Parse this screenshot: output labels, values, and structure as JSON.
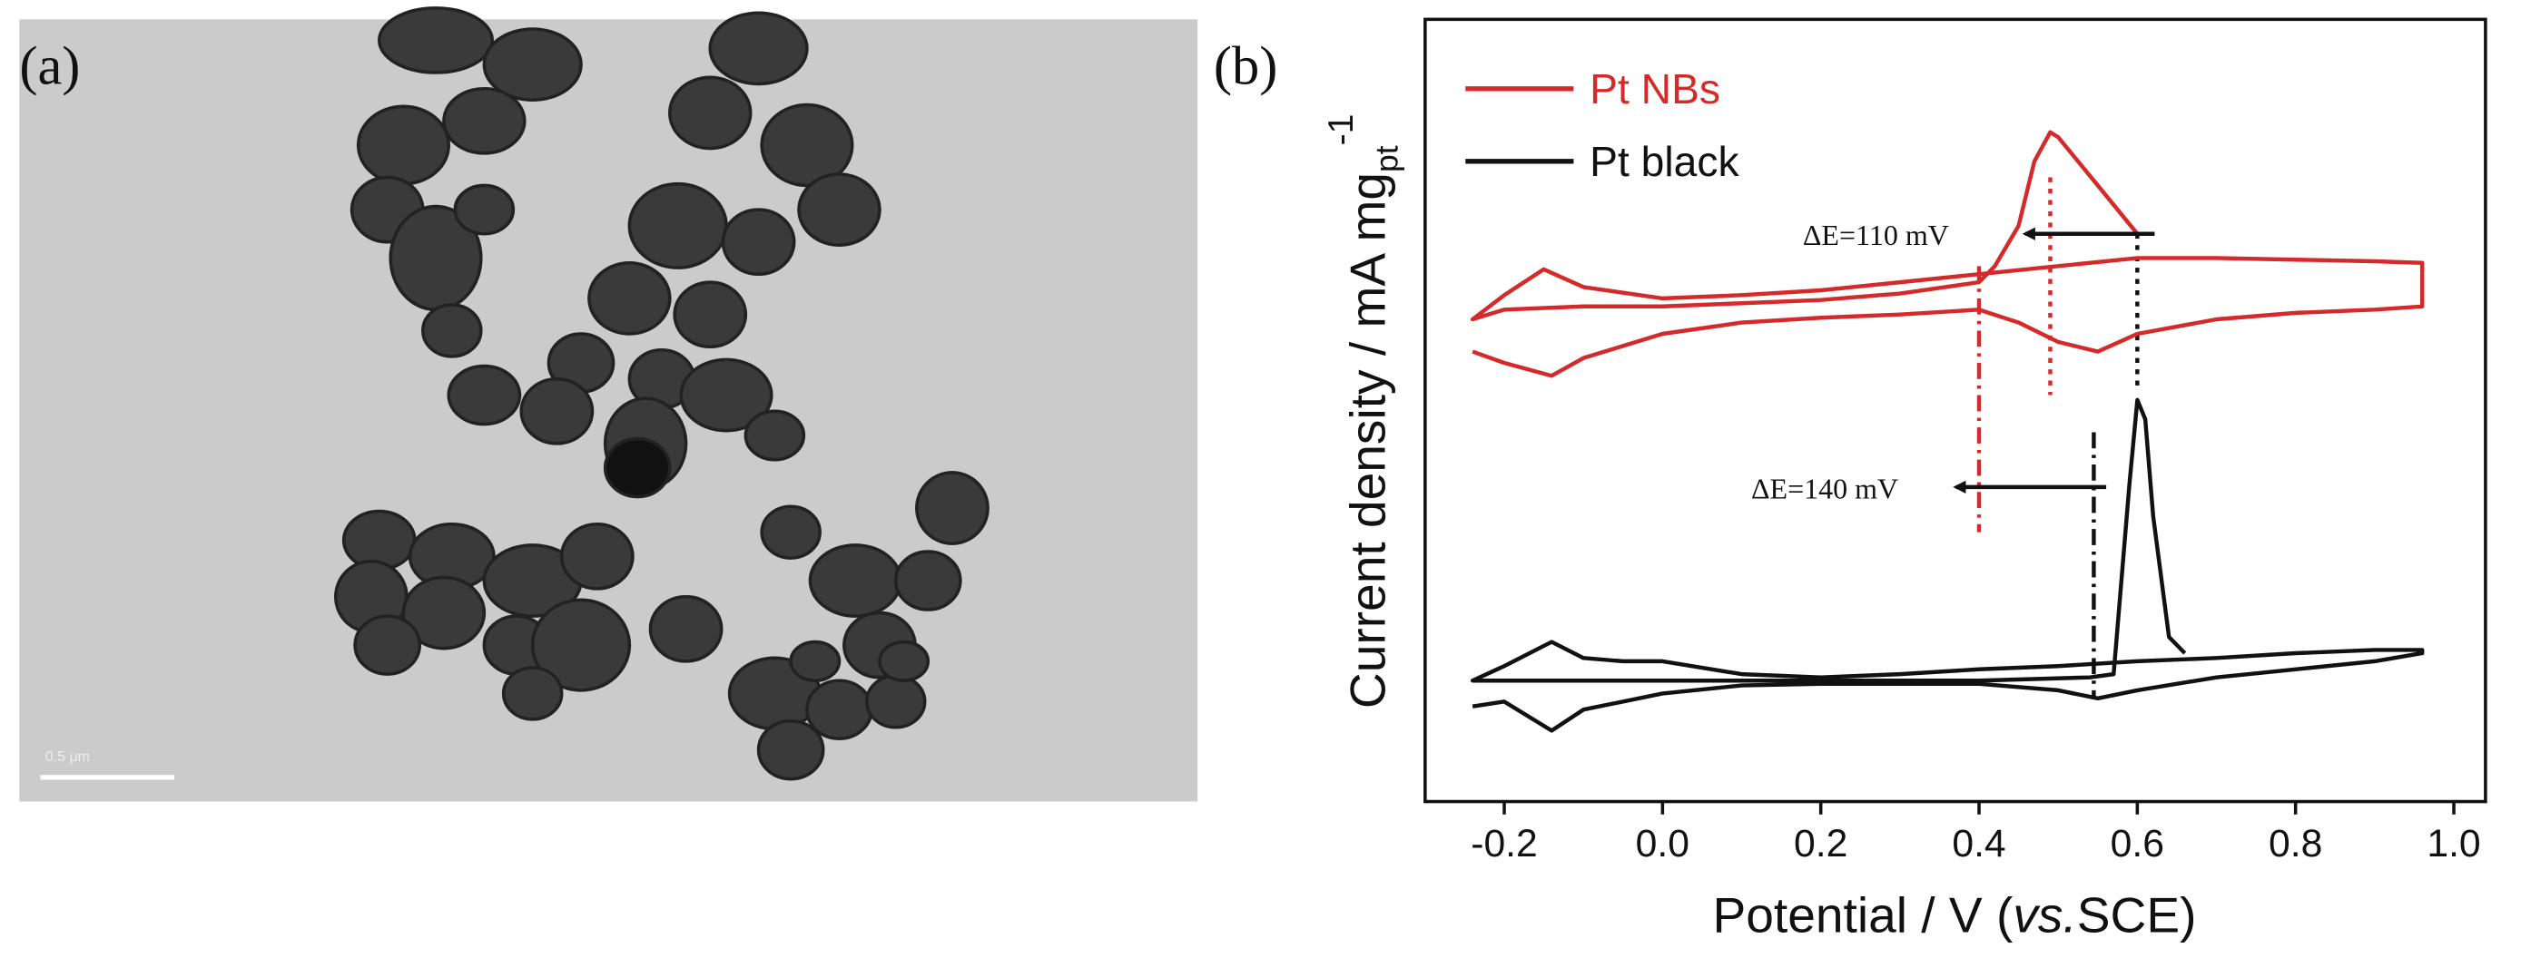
{
  "panel_a": {
    "label": "(a)",
    "scale_bar": "0.5 μm"
  },
  "chart_data": {
    "type": "line",
    "panel_label": "(b)",
    "x_label": [
      "Potential / V (",
      "vs.",
      "SCE)"
    ],
    "y_label": "Current density / mA mg",
    "y_label_sub": "pt",
    "y_label_sup": "-1",
    "xlim": [
      -0.3,
      1.04
    ],
    "ylim": [
      3,
      488
    ],
    "xticks": [
      -0.2,
      {
        "value": 0,
        "label": "0.0"
      },
      0.2,
      0.4,
      0.6,
      0.8,
      {
        "value": 1,
        "label": "1.0"
      }
    ],
    "legend": "upper left",
    "series": [
      {
        "name": "Pt NBs",
        "color": "#d42a2a",
        "x": [
          -0.24,
          -0.2,
          -0.14,
          -0.1,
          0.0,
          0.1,
          0.2,
          0.3,
          0.4,
          0.45,
          0.5,
          0.55,
          0.6,
          0.7,
          0.8,
          0.9,
          0.96,
          0.96,
          0.9,
          0.8,
          0.7,
          0.6,
          0.5,
          0.4,
          0.3,
          0.2,
          0.1,
          0.0,
          -0.1,
          -0.15,
          -0.2,
          -0.24,
          -0.2,
          -0.1,
          0.0,
          0.1,
          0.2,
          0.3,
          0.4,
          0.42,
          0.45,
          0.47,
          0.49,
          0.5,
          0.55,
          0.6
        ],
        "values": [
          282,
          275,
          267,
          278,
          293,
          300,
          303,
          305,
          308,
          300,
          288,
          282,
          293,
          302,
          306,
          308,
          310,
          337,
          338,
          339,
          340,
          340,
          335,
          330,
          325,
          320,
          317,
          315,
          322,
          333,
          317,
          302,
          308,
          310,
          310,
          312,
          314,
          318,
          325,
          335,
          360,
          400,
          418,
          415,
          385,
          355
        ]
      },
      {
        "name": "Pt black",
        "color": "#111111",
        "x": [
          -0.24,
          -0.2,
          -0.14,
          -0.1,
          0.0,
          0.1,
          0.2,
          0.3,
          0.4,
          0.5,
          0.55,
          0.6,
          0.7,
          0.8,
          0.9,
          0.96,
          0.96,
          0.9,
          0.8,
          0.7,
          0.6,
          0.5,
          0.4,
          0.3,
          0.2,
          0.1,
          0.0,
          -0.05,
          -0.1,
          -0.14,
          -0.2,
          -0.24,
          -0.2,
          0.0,
          0.2,
          0.4,
          0.54,
          0.57,
          0.59,
          0.6,
          0.61,
          0.62,
          0.64,
          0.66
        ],
        "values": [
          62,
          65,
          47,
          60,
          70,
          75,
          76,
          76,
          76,
          72,
          67,
          72,
          80,
          85,
          90,
          95,
          97,
          97,
          95,
          92,
          90,
          87,
          85,
          82,
          80,
          82,
          90,
          90,
          92,
          102,
          87,
          78,
          78,
          78,
          78,
          78,
          80,
          82,
          200,
          252,
          240,
          180,
          105,
          95
        ]
      }
    ],
    "reference_lines": [
      {
        "x": 0.4,
        "color": "#d42a2a",
        "style": "dashdot"
      },
      {
        "x": 0.49,
        "color": "#d42a2a",
        "style": "dotted"
      },
      {
        "x": 0.6,
        "color": "#111111",
        "style": "dotted"
      },
      {
        "x": 0.545,
        "color": "#111111",
        "style": "dashdot"
      }
    ],
    "annotations": [
      "ΔE=110 mV",
      "ΔE=140 mV"
    ]
  }
}
